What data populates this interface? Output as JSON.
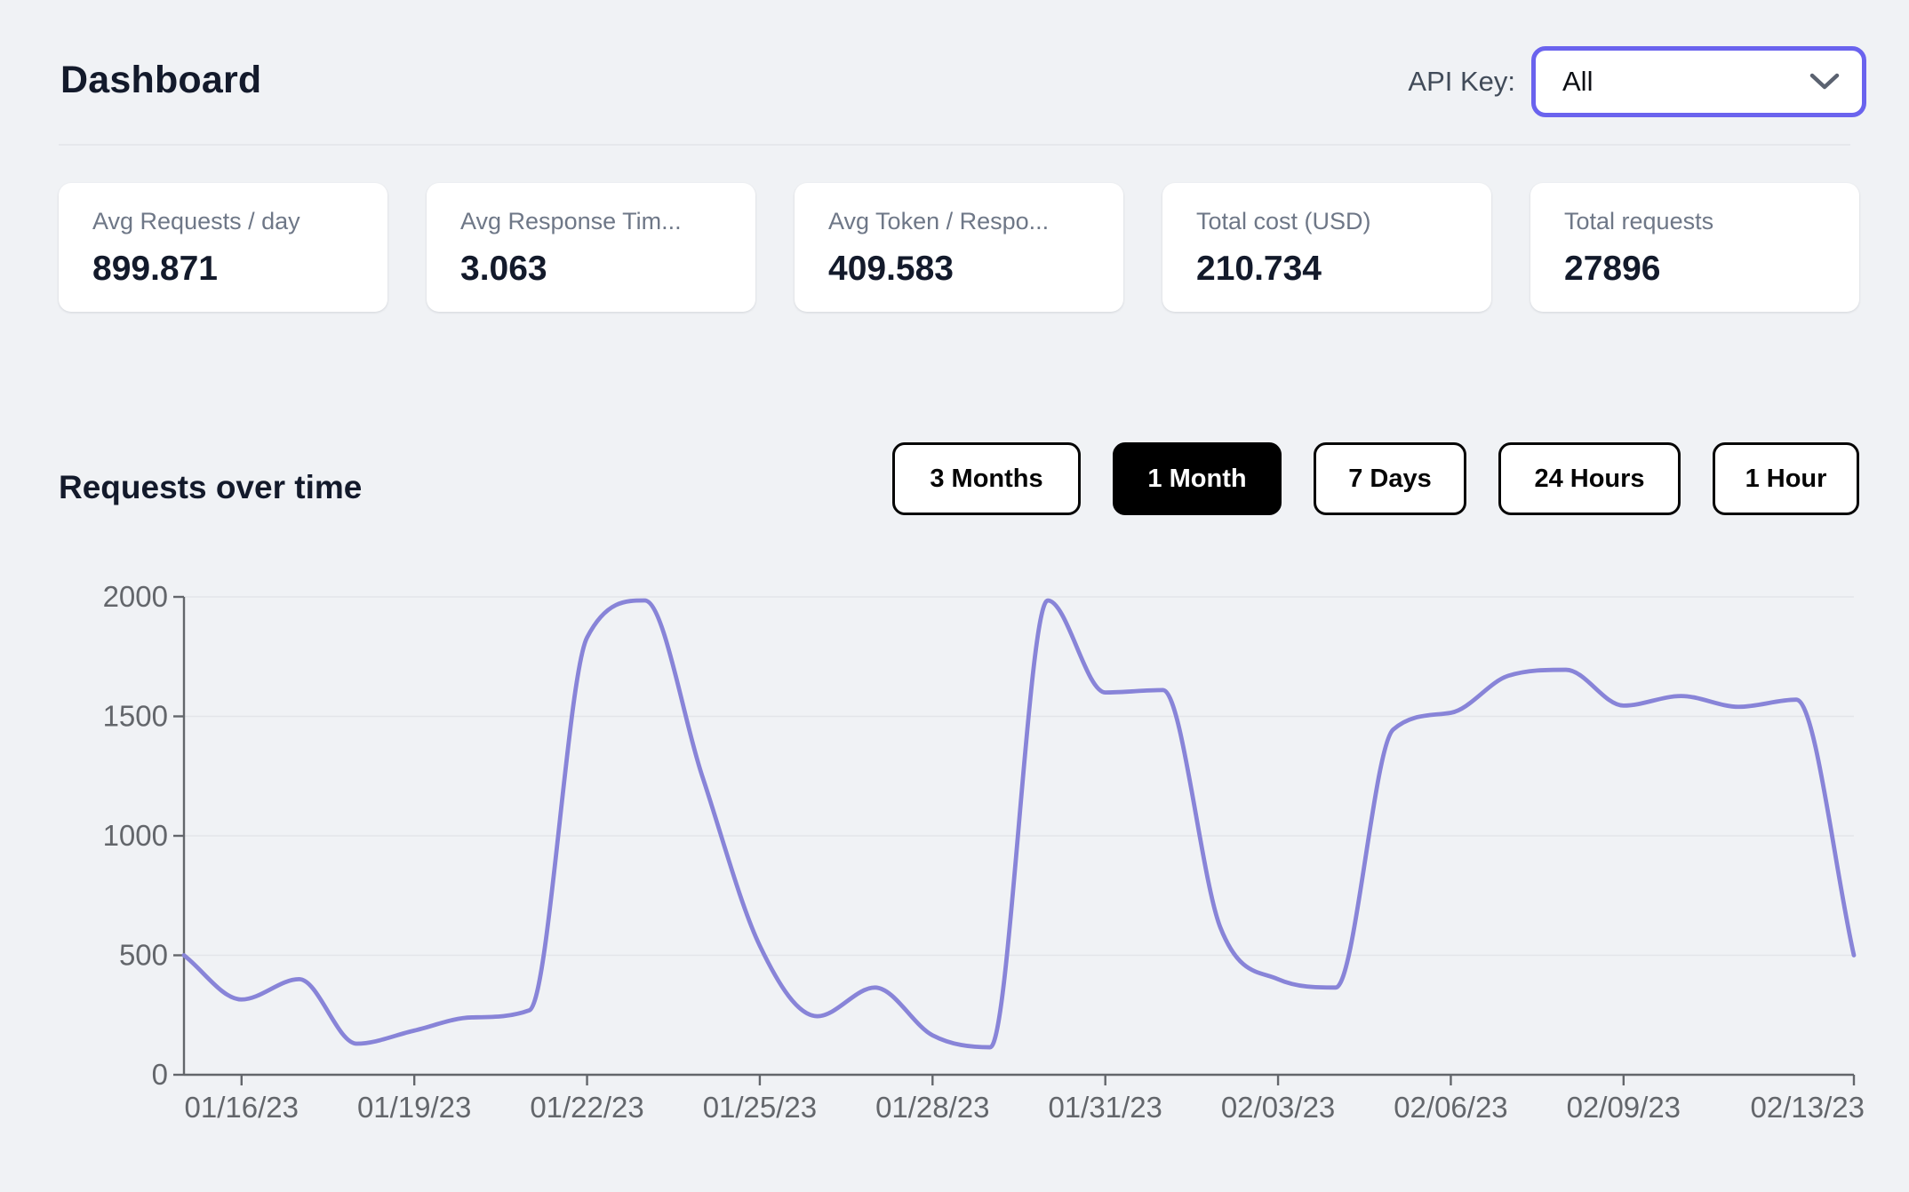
{
  "header": {
    "title": "Dashboard",
    "api_key_label": "API Key:",
    "api_key_value": "All"
  },
  "stats": [
    {
      "label": "Avg Requests / day",
      "value": "899.871"
    },
    {
      "label": "Avg Response Tim...",
      "value": "3.063"
    },
    {
      "label": "Avg Token / Respo...",
      "value": "409.583"
    },
    {
      "label": "Total cost (USD)",
      "value": "210.734"
    },
    {
      "label": "Total requests",
      "value": "27896"
    }
  ],
  "requests_section": {
    "title": "Requests over time",
    "range_buttons": [
      {
        "label": "3 Months",
        "active": false
      },
      {
        "label": "1 Month",
        "active": true
      },
      {
        "label": "7 Days",
        "active": false
      },
      {
        "label": "24 Hours",
        "active": false
      },
      {
        "label": "1 Hour",
        "active": false
      }
    ]
  },
  "chart_data": {
    "type": "line",
    "title": "Requests over time",
    "xlabel": "",
    "ylabel": "",
    "x": [
      "01/15/23",
      "01/16/23",
      "01/17/23",
      "01/18/23",
      "01/19/23",
      "01/20/23",
      "01/21/23",
      "01/22/23",
      "01/23/23",
      "01/24/23",
      "01/25/23",
      "01/26/23",
      "01/27/23",
      "01/28/23",
      "01/29/23",
      "01/30/23",
      "01/31/23",
      "02/01/23",
      "02/02/23",
      "02/03/23",
      "02/04/23",
      "02/05/23",
      "02/06/23",
      "02/07/23",
      "02/08/23",
      "02/09/23",
      "02/10/23",
      "02/11/23",
      "02/12/23",
      "02/13/23"
    ],
    "values": [
      500,
      315,
      400,
      130,
      185,
      240,
      270,
      1830,
      1985,
      1250,
      540,
      245,
      365,
      165,
      115,
      1985,
      1600,
      1610,
      615,
      400,
      365,
      1445,
      1515,
      1670,
      1695,
      1545,
      1585,
      1540,
      1570,
      500
    ],
    "x_tick_indices": [
      1,
      4,
      7,
      10,
      13,
      16,
      19,
      22,
      25,
      29
    ],
    "x_tick_labels": [
      "01/16/23",
      "01/19/23",
      "01/22/23",
      "01/25/23",
      "01/28/23",
      "01/31/23",
      "02/03/23",
      "02/06/23",
      "02/09/23",
      "02/13/23"
    ],
    "y_ticks": [
      0,
      500,
      1000,
      1500,
      2000
    ],
    "ylim": [
      0,
      2000
    ],
    "grid": "horizontal",
    "legend": "none",
    "interpolation": "monotone"
  },
  "colors": {
    "background": "#f0f2f5",
    "card_bg": "#ffffff",
    "title_text": "#131a2b",
    "muted_text": "#6e7787",
    "axis_text": "#63666b",
    "axis_line": "#63666b",
    "grid_line": "#e3e5e9",
    "accent_indigo": "#6a63ee",
    "active_button_bg": "#000000",
    "line_color": "#8884d8"
  }
}
